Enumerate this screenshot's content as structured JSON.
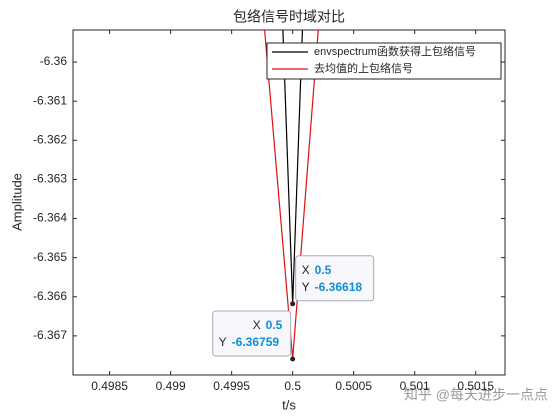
{
  "chart_data": {
    "type": "line",
    "title": "包络信号时域对比",
    "x_label": "t/s",
    "y_label": "Amplitude",
    "xlim": [
      0.4982,
      0.50174
    ],
    "ylim": [
      -6.368,
      -6.35918
    ],
    "xticks": [
      0.4985,
      0.499,
      0.4995,
      0.5,
      0.5005,
      0.501,
      0.5015
    ],
    "yticks": [
      -6.36,
      -6.361,
      -6.362,
      -6.363,
      -6.364,
      -6.365,
      -6.366,
      -6.367
    ],
    "series": [
      {
        "name": "envspectrum函数获得上包络信号",
        "color": "#000000",
        "x": [
          0.49992,
          0.5,
          0.50008
        ],
        "values": [
          -6.35918,
          -6.36618,
          -6.35918
        ]
      },
      {
        "name": "去均值的上包络信号",
        "color": "#e01010",
        "x": [
          0.49977,
          0.5,
          0.50021
        ],
        "values": [
          -6.35918,
          -6.36759,
          -6.35918
        ]
      }
    ],
    "datatips": [
      {
        "x_text": "X",
        "y_text": "Y",
        "x": 0.5,
        "y": -6.36618
      },
      {
        "x_text": "X",
        "y_text": "Y",
        "x": 0.5,
        "y": -6.36759
      }
    ],
    "legend": "top-right",
    "watermark": "知乎 @每天进步一点点"
  }
}
